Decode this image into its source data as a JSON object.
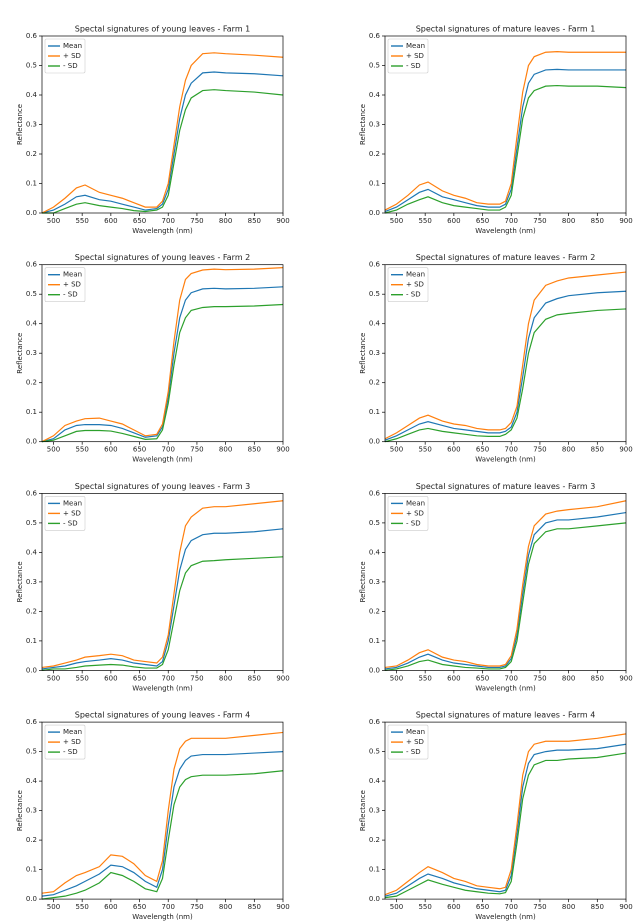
{
  "chart_data": [
    {
      "type": "line",
      "title": "Spectal signatures of young leaves - Farm 1",
      "xlabel": "Wavelength (nm)",
      "ylabel": "Reflectance",
      "x": [
        480,
        500,
        520,
        540,
        555,
        580,
        600,
        620,
        640,
        660,
        680,
        690,
        700,
        710,
        720,
        730,
        740,
        760,
        780,
        800,
        850,
        900
      ],
      "xlim": [
        480,
        900
      ],
      "xticks": [
        500,
        550,
        600,
        650,
        700,
        750,
        800,
        850,
        900
      ],
      "ylim": [
        0,
        0.6
      ],
      "yticks": [
        {
          "value": 0,
          "label": "0.0"
        },
        0.1,
        0.2,
        0.3,
        0.4,
        0.5,
        0.6
      ],
      "legend": "upper left",
      "series": [
        {
          "name": "Mean",
          "color": "#1f77b4",
          "values": [
            0.0,
            0.01,
            0.03,
            0.055,
            0.06,
            0.045,
            0.04,
            0.03,
            0.02,
            0.01,
            0.015,
            0.03,
            0.08,
            0.2,
            0.32,
            0.4,
            0.44,
            0.475,
            0.478,
            0.475,
            0.472,
            0.465
          ]
        },
        {
          "name": "+ SD",
          "color": "#ff7f0e",
          "values": [
            0.0,
            0.02,
            0.05,
            0.085,
            0.095,
            0.07,
            0.06,
            0.05,
            0.035,
            0.02,
            0.02,
            0.04,
            0.1,
            0.23,
            0.36,
            0.45,
            0.5,
            0.54,
            0.543,
            0.54,
            0.535,
            0.528
          ]
        },
        {
          "name": "- SD",
          "color": "#2ca02c",
          "values": [
            0.0,
            0.0,
            0.015,
            0.03,
            0.035,
            0.025,
            0.02,
            0.015,
            0.008,
            0.005,
            0.01,
            0.02,
            0.06,
            0.17,
            0.28,
            0.35,
            0.39,
            0.415,
            0.418,
            0.415,
            0.41,
            0.4
          ]
        }
      ]
    },
    {
      "type": "line",
      "title": "Spectal signatures of mature leaves - Farm 1",
      "xlabel": "Wavelength (nm)",
      "ylabel": "Reflectance",
      "x": [
        480,
        500,
        520,
        540,
        555,
        580,
        600,
        620,
        640,
        660,
        680,
        690,
        700,
        710,
        720,
        730,
        740,
        760,
        780,
        800,
        850,
        900
      ],
      "xlim": [
        480,
        900
      ],
      "xticks": [
        500,
        550,
        600,
        650,
        700,
        750,
        800,
        850,
        900
      ],
      "ylim": [
        0,
        0.6
      ],
      "yticks": [
        {
          "value": 0,
          "label": "0.0"
        },
        0.1,
        0.2,
        0.3,
        0.4,
        0.5,
        0.6
      ],
      "legend": "upper left",
      "series": [
        {
          "name": "Mean",
          "color": "#1f77b4",
          "values": [
            0.005,
            0.02,
            0.045,
            0.07,
            0.08,
            0.055,
            0.045,
            0.035,
            0.025,
            0.02,
            0.02,
            0.03,
            0.08,
            0.22,
            0.36,
            0.44,
            0.47,
            0.485,
            0.487,
            0.485,
            0.485,
            0.485
          ]
        },
        {
          "name": "+ SD",
          "color": "#ff7f0e",
          "values": [
            0.01,
            0.03,
            0.06,
            0.095,
            0.105,
            0.075,
            0.06,
            0.05,
            0.035,
            0.03,
            0.03,
            0.04,
            0.1,
            0.26,
            0.41,
            0.5,
            0.53,
            0.545,
            0.547,
            0.545,
            0.545,
            0.545
          ]
        },
        {
          "name": "- SD",
          "color": "#2ca02c",
          "values": [
            0.0,
            0.01,
            0.03,
            0.045,
            0.055,
            0.035,
            0.025,
            0.02,
            0.015,
            0.01,
            0.01,
            0.02,
            0.06,
            0.19,
            0.32,
            0.39,
            0.415,
            0.43,
            0.432,
            0.43,
            0.43,
            0.425
          ]
        }
      ]
    },
    {
      "type": "line",
      "title": "Spectal signatures of young leaves - Farm 2",
      "xlabel": "Wavelength (nm)",
      "ylabel": "Reflectance",
      "x": [
        480,
        500,
        520,
        540,
        555,
        580,
        600,
        620,
        640,
        660,
        680,
        690,
        700,
        710,
        720,
        730,
        740,
        760,
        780,
        800,
        850,
        900
      ],
      "xlim": [
        480,
        900
      ],
      "xticks": [
        500,
        550,
        600,
        650,
        700,
        750,
        800,
        850,
        900
      ],
      "ylim": [
        0,
        0.6
      ],
      "yticks": [
        {
          "value": 0,
          "label": "0.0"
        },
        0.1,
        0.2,
        0.3,
        0.4,
        0.5,
        0.6
      ],
      "legend": "upper left",
      "series": [
        {
          "name": "Mean",
          "color": "#1f77b4",
          "values": [
            0.0,
            0.01,
            0.04,
            0.055,
            0.058,
            0.058,
            0.055,
            0.045,
            0.03,
            0.015,
            0.02,
            0.05,
            0.15,
            0.3,
            0.42,
            0.48,
            0.505,
            0.518,
            0.52,
            0.518,
            0.52,
            0.525
          ]
        },
        {
          "name": "+ SD",
          "color": "#ff7f0e",
          "values": [
            0.0,
            0.02,
            0.055,
            0.07,
            0.078,
            0.08,
            0.07,
            0.06,
            0.04,
            0.02,
            0.025,
            0.06,
            0.17,
            0.34,
            0.48,
            0.55,
            0.57,
            0.582,
            0.585,
            0.583,
            0.585,
            0.59
          ]
        },
        {
          "name": "- SD",
          "color": "#2ca02c",
          "values": [
            0.0,
            0.005,
            0.02,
            0.035,
            0.038,
            0.038,
            0.036,
            0.028,
            0.018,
            0.008,
            0.01,
            0.04,
            0.13,
            0.26,
            0.37,
            0.42,
            0.445,
            0.455,
            0.458,
            0.458,
            0.46,
            0.465
          ]
        }
      ]
    },
    {
      "type": "line",
      "title": "Spectal signatures of mature leaves - Farm 2",
      "xlabel": "Wavelength (nm)",
      "ylabel": "Reflectance",
      "x": [
        480,
        500,
        520,
        540,
        555,
        580,
        600,
        620,
        640,
        660,
        680,
        690,
        700,
        710,
        720,
        730,
        740,
        760,
        780,
        800,
        850,
        900
      ],
      "xlim": [
        480,
        900
      ],
      "xticks": [
        500,
        550,
        600,
        650,
        700,
        750,
        800,
        850,
        900
      ],
      "ylim": [
        0,
        0.6
      ],
      "yticks": [
        {
          "value": 0,
          "label": "0.0"
        },
        0.1,
        0.2,
        0.3,
        0.4,
        0.5,
        0.6
      ],
      "legend": "upper left",
      "series": [
        {
          "name": "Mean",
          "color": "#1f77b4",
          "values": [
            0.005,
            0.02,
            0.04,
            0.06,
            0.068,
            0.055,
            0.045,
            0.04,
            0.035,
            0.03,
            0.03,
            0.035,
            0.05,
            0.1,
            0.22,
            0.35,
            0.42,
            0.47,
            0.485,
            0.495,
            0.505,
            0.51
          ]
        },
        {
          "name": "+ SD",
          "color": "#ff7f0e",
          "values": [
            0.01,
            0.03,
            0.055,
            0.08,
            0.09,
            0.07,
            0.06,
            0.055,
            0.045,
            0.04,
            0.04,
            0.045,
            0.065,
            0.12,
            0.26,
            0.4,
            0.48,
            0.53,
            0.545,
            0.555,
            0.565,
            0.575
          ]
        },
        {
          "name": "- SD",
          "color": "#2ca02c",
          "values": [
            0.0,
            0.01,
            0.025,
            0.04,
            0.045,
            0.035,
            0.03,
            0.025,
            0.02,
            0.018,
            0.018,
            0.025,
            0.04,
            0.08,
            0.18,
            0.3,
            0.37,
            0.415,
            0.43,
            0.435,
            0.445,
            0.45
          ]
        }
      ]
    },
    {
      "type": "line",
      "title": "Spectal signatures of young leaves - Farm 3",
      "xlabel": "Wavelength (nm)",
      "ylabel": "Reflectance",
      "x": [
        480,
        500,
        520,
        540,
        555,
        580,
        600,
        620,
        640,
        660,
        680,
        690,
        700,
        710,
        720,
        730,
        740,
        760,
        780,
        800,
        850,
        900
      ],
      "xlim": [
        480,
        900
      ],
      "xticks": [
        500,
        550,
        600,
        650,
        700,
        750,
        800,
        850,
        900
      ],
      "ylim": [
        0,
        0.6
      ],
      "yticks": [
        {
          "value": 0,
          "label": "0.0"
        },
        0.1,
        0.2,
        0.3,
        0.4,
        0.5,
        0.6
      ],
      "legend": "upper left",
      "series": [
        {
          "name": "Mean",
          "color": "#1f77b4",
          "values": [
            0.005,
            0.01,
            0.015,
            0.025,
            0.03,
            0.035,
            0.04,
            0.035,
            0.025,
            0.02,
            0.015,
            0.03,
            0.1,
            0.22,
            0.34,
            0.41,
            0.44,
            0.46,
            0.465,
            0.465,
            0.47,
            0.48
          ]
        },
        {
          "name": "+ SD",
          "color": "#ff7f0e",
          "values": [
            0.01,
            0.015,
            0.025,
            0.035,
            0.045,
            0.05,
            0.055,
            0.05,
            0.035,
            0.03,
            0.025,
            0.045,
            0.12,
            0.26,
            0.4,
            0.49,
            0.52,
            0.55,
            0.555,
            0.555,
            0.565,
            0.575
          ]
        },
        {
          "name": "- SD",
          "color": "#2ca02c",
          "values": [
            0.0,
            0.005,
            0.005,
            0.01,
            0.015,
            0.018,
            0.02,
            0.018,
            0.012,
            0.008,
            0.008,
            0.02,
            0.07,
            0.17,
            0.27,
            0.33,
            0.355,
            0.37,
            0.372,
            0.375,
            0.38,
            0.385
          ]
        }
      ]
    },
    {
      "type": "line",
      "title": "Spectal signatures of mature leaves - Farm 3",
      "xlabel": "Wavelength (nm)",
      "ylabel": "Reflectance",
      "x": [
        480,
        500,
        520,
        540,
        555,
        580,
        600,
        620,
        640,
        660,
        680,
        690,
        700,
        710,
        720,
        730,
        740,
        760,
        780,
        800,
        850,
        900
      ],
      "xlim": [
        480,
        900
      ],
      "xticks": [
        500,
        550,
        600,
        650,
        700,
        750,
        800,
        850,
        900
      ],
      "ylim": [
        0,
        0.6
      ],
      "yticks": [
        {
          "value": 0,
          "label": "0.0"
        },
        0.1,
        0.2,
        0.3,
        0.4,
        0.5,
        0.6
      ],
      "legend": "upper left",
      "series": [
        {
          "name": "Mean",
          "color": "#1f77b4",
          "values": [
            0.005,
            0.01,
            0.025,
            0.045,
            0.055,
            0.035,
            0.025,
            0.02,
            0.015,
            0.01,
            0.01,
            0.015,
            0.04,
            0.12,
            0.26,
            0.39,
            0.46,
            0.5,
            0.51,
            0.51,
            0.52,
            0.535
          ]
        },
        {
          "name": "+ SD",
          "color": "#ff7f0e",
          "values": [
            0.01,
            0.015,
            0.035,
            0.06,
            0.07,
            0.045,
            0.035,
            0.03,
            0.02,
            0.015,
            0.015,
            0.02,
            0.05,
            0.14,
            0.29,
            0.42,
            0.49,
            0.53,
            0.54,
            0.545,
            0.555,
            0.575
          ]
        },
        {
          "name": "- SD",
          "color": "#2ca02c",
          "values": [
            0.0,
            0.005,
            0.015,
            0.03,
            0.035,
            0.02,
            0.015,
            0.01,
            0.008,
            0.005,
            0.005,
            0.01,
            0.03,
            0.1,
            0.23,
            0.36,
            0.43,
            0.47,
            0.48,
            0.48,
            0.49,
            0.5
          ]
        }
      ]
    },
    {
      "type": "line",
      "title": "Spectal signatures of young leaves - Farm 4",
      "xlabel": "Wavelength (nm)",
      "ylabel": "Reflectance",
      "x": [
        480,
        500,
        520,
        540,
        555,
        580,
        600,
        620,
        640,
        660,
        680,
        690,
        700,
        710,
        720,
        730,
        740,
        760,
        780,
        800,
        850,
        900
      ],
      "xlim": [
        480,
        900
      ],
      "xticks": [
        500,
        550,
        600,
        650,
        700,
        750,
        800,
        850,
        900
      ],
      "ylim": [
        0,
        0.6
      ],
      "yticks": [
        {
          "value": 0,
          "label": "0.0"
        },
        0.1,
        0.2,
        0.3,
        0.4,
        0.5,
        0.6
      ],
      "legend": "upper left",
      "series": [
        {
          "name": "Mean",
          "color": "#1f77b4",
          "values": [
            0.01,
            0.015,
            0.03,
            0.045,
            0.06,
            0.085,
            0.115,
            0.11,
            0.09,
            0.06,
            0.04,
            0.1,
            0.25,
            0.38,
            0.44,
            0.47,
            0.485,
            0.49,
            0.49,
            0.49,
            0.495,
            0.5
          ]
        },
        {
          "name": "+ SD",
          "color": "#ff7f0e",
          "values": [
            0.02,
            0.025,
            0.055,
            0.08,
            0.09,
            0.11,
            0.15,
            0.145,
            0.12,
            0.08,
            0.06,
            0.13,
            0.3,
            0.44,
            0.51,
            0.535,
            0.545,
            0.545,
            0.545,
            0.545,
            0.555,
            0.565
          ]
        },
        {
          "name": "- SD",
          "color": "#2ca02c",
          "values": [
            0.0,
            0.005,
            0.01,
            0.02,
            0.03,
            0.055,
            0.09,
            0.08,
            0.06,
            0.035,
            0.025,
            0.07,
            0.2,
            0.32,
            0.38,
            0.405,
            0.415,
            0.42,
            0.42,
            0.42,
            0.425,
            0.435
          ]
        }
      ]
    },
    {
      "type": "line",
      "title": "Spectal signatures of mature leaves - Farm 4",
      "xlabel": "Wavelength (nm)",
      "ylabel": "Reflectance",
      "x": [
        480,
        500,
        520,
        540,
        555,
        580,
        600,
        620,
        640,
        660,
        680,
        690,
        700,
        710,
        720,
        730,
        740,
        760,
        780,
        800,
        850,
        900
      ],
      "xlim": [
        480,
        900
      ],
      "xticks": [
        500,
        550,
        600,
        650,
        700,
        750,
        800,
        850,
        900
      ],
      "ylim": [
        0,
        0.6
      ],
      "yticks": [
        {
          "value": 0,
          "label": "0.0"
        },
        0.1,
        0.2,
        0.3,
        0.4,
        0.5,
        0.6
      ],
      "legend": "upper left",
      "series": [
        {
          "name": "Mean",
          "color": "#1f77b4",
          "values": [
            0.01,
            0.02,
            0.045,
            0.07,
            0.085,
            0.07,
            0.055,
            0.045,
            0.035,
            0.03,
            0.025,
            0.03,
            0.08,
            0.22,
            0.38,
            0.46,
            0.49,
            0.5,
            0.505,
            0.505,
            0.51,
            0.525
          ]
        },
        {
          "name": "+ SD",
          "color": "#ff7f0e",
          "values": [
            0.015,
            0.03,
            0.06,
            0.09,
            0.11,
            0.09,
            0.07,
            0.06,
            0.045,
            0.04,
            0.035,
            0.04,
            0.1,
            0.25,
            0.42,
            0.5,
            0.525,
            0.535,
            0.535,
            0.535,
            0.545,
            0.56
          ]
        },
        {
          "name": "- SD",
          "color": "#2ca02c",
          "values": [
            0.005,
            0.01,
            0.03,
            0.05,
            0.065,
            0.05,
            0.04,
            0.03,
            0.025,
            0.02,
            0.018,
            0.022,
            0.06,
            0.19,
            0.34,
            0.42,
            0.455,
            0.47,
            0.47,
            0.475,
            0.48,
            0.495
          ]
        }
      ]
    }
  ]
}
